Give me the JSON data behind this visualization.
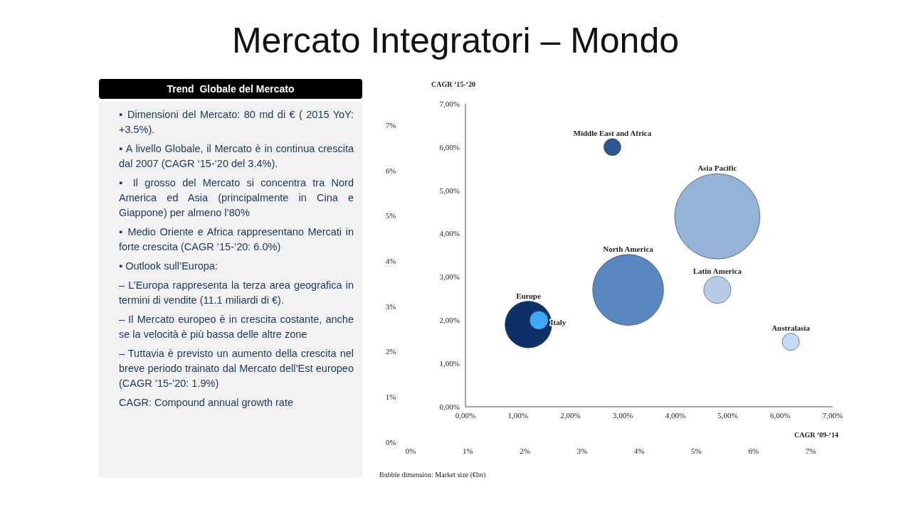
{
  "chart_data": [
    {
      "type": "bubble",
      "title": "Mercato Integratori – Mondo",
      "xlabel": "CAGR ‘09-‘14",
      "ylabel": "CAGR ‘15-‘20",
      "annotations": [
        "Bubble dimension: Market size (€bn)"
      ],
      "xlim": [
        0,
        7
      ],
      "xticks": [
        {
          "value": 0,
          "label": "0,00%"
        },
        {
          "value": 1,
          "label": "1,00%"
        },
        {
          "value": 2,
          "label": "2,00%"
        },
        {
          "value": 3,
          "label": "3,00%"
        },
        {
          "value": 4,
          "label": "4,00%"
        },
        {
          "value": 5,
          "label": "5,00%"
        },
        {
          "value": 6,
          "label": "6,00%"
        },
        {
          "value": 7,
          "label": "7,00%"
        }
      ],
      "ylim": [
        0,
        7
      ],
      "yticks": [
        {
          "value": 0,
          "label": "0,00%"
        },
        {
          "value": 1,
          "label": "1,00%"
        },
        {
          "value": 2,
          "label": "2,00%"
        },
        {
          "value": 3,
          "label": "3,00%"
        },
        {
          "value": 4,
          "label": "4,00%"
        },
        {
          "value": 5,
          "label": "5,00%"
        },
        {
          "value": 6,
          "label": "6,00%"
        },
        {
          "value": 7,
          "label": "7,00%"
        }
      ],
      "x2lim": [
        0,
        7
      ],
      "x2ticks": [
        {
          "value": 0,
          "label": "0%"
        },
        {
          "value": 1,
          "label": "1%"
        },
        {
          "value": 2,
          "label": "2%"
        },
        {
          "value": 3,
          "label": "3%"
        },
        {
          "value": 4,
          "label": "4%"
        },
        {
          "value": 5,
          "label": "5%"
        },
        {
          "value": 6,
          "label": "6%"
        },
        {
          "value": 7,
          "label": "7%"
        }
      ],
      "y2lim": [
        0,
        7
      ],
      "y2ticks": [
        {
          "value": 0,
          "label": "0%"
        },
        {
          "value": 1,
          "label": "1%"
        },
        {
          "value": 2,
          "label": "2%"
        },
        {
          "value": 3,
          "label": "3%"
        },
        {
          "value": 4,
          "label": "4%"
        },
        {
          "value": 5,
          "label": "5%"
        },
        {
          "value": 6,
          "label": "6%"
        },
        {
          "value": 7,
          "label": "7%"
        }
      ],
      "grid": false,
      "series": [
        {
          "name": "Middle East and Africa",
          "color": "#2f5592",
          "x": [
            2.8
          ],
          "values": [
            6.0
          ],
          "sizes": [
            0.04
          ]
        },
        {
          "name": "Asia Pacific",
          "color": "#95b3d7",
          "x": [
            4.8
          ],
          "values": [
            4.4
          ],
          "sizes": [
            1
          ]
        },
        {
          "name": "North America",
          "color": "#5b87c0",
          "x": [
            3.1
          ],
          "values": [
            2.7
          ],
          "sizes": [
            0.69
          ]
        },
        {
          "name": "Latin America",
          "color": "#b8cce4",
          "x": [
            4.8
          ],
          "values": [
            2.7
          ],
          "sizes": [
            0.1
          ]
        },
        {
          "name": "Europe",
          "color": "#0d3166",
          "x": [
            1.2
          ],
          "values": [
            1.9
          ],
          "sizes": [
            0.3
          ]
        },
        {
          "name": "Italy",
          "color": "#3fa9f5",
          "x": [
            1.4
          ],
          "values": [
            2.0
          ],
          "sizes": [
            0.047
          ]
        },
        {
          "name": "Australasia",
          "color": "#c6dcf5",
          "x": [
            6.2
          ],
          "values": [
            1.5
          ],
          "sizes": [
            0.04
          ]
        }
      ]
    },
    {
      "type": "other",
      "title": "Trend  Globale del Mercato",
      "annotations": [
        "▪ Dimensioni del Mercato: 80 md di € ( 2015 YoY: +3.5%).",
        "▪ A livello Globale, il Mercato è in continua crescita dal 2007 (CAGR ‘15-‘20 del 3.4%).",
        "▪ Il grosso del Mercato si concentra tra Nord America ed Asia (principalmente in Cina e Giappone) per almeno l’80%",
        "▪ Medio Oriente e Africa rappresentano Mercati in forte crescita (CAGR ‘15-‘20: 6.0%)",
        "▪ Outlook sull’Europa:",
        "– L’Europa rappresenta la terza area geografica in termini di vendite (11.1 miliardi di €).",
        "– Il Mercato europeo è in crescita costante, anche se la velocità è più bassa delle altre zone",
        "– Tuttavia è previsto un aumento della crescita nel breve periodo trainato dal Mercato dell’Est europeo (CAGR ’15-’20: 1.9%)",
        "CAGR: Compound annual growth rate"
      ]
    }
  ]
}
